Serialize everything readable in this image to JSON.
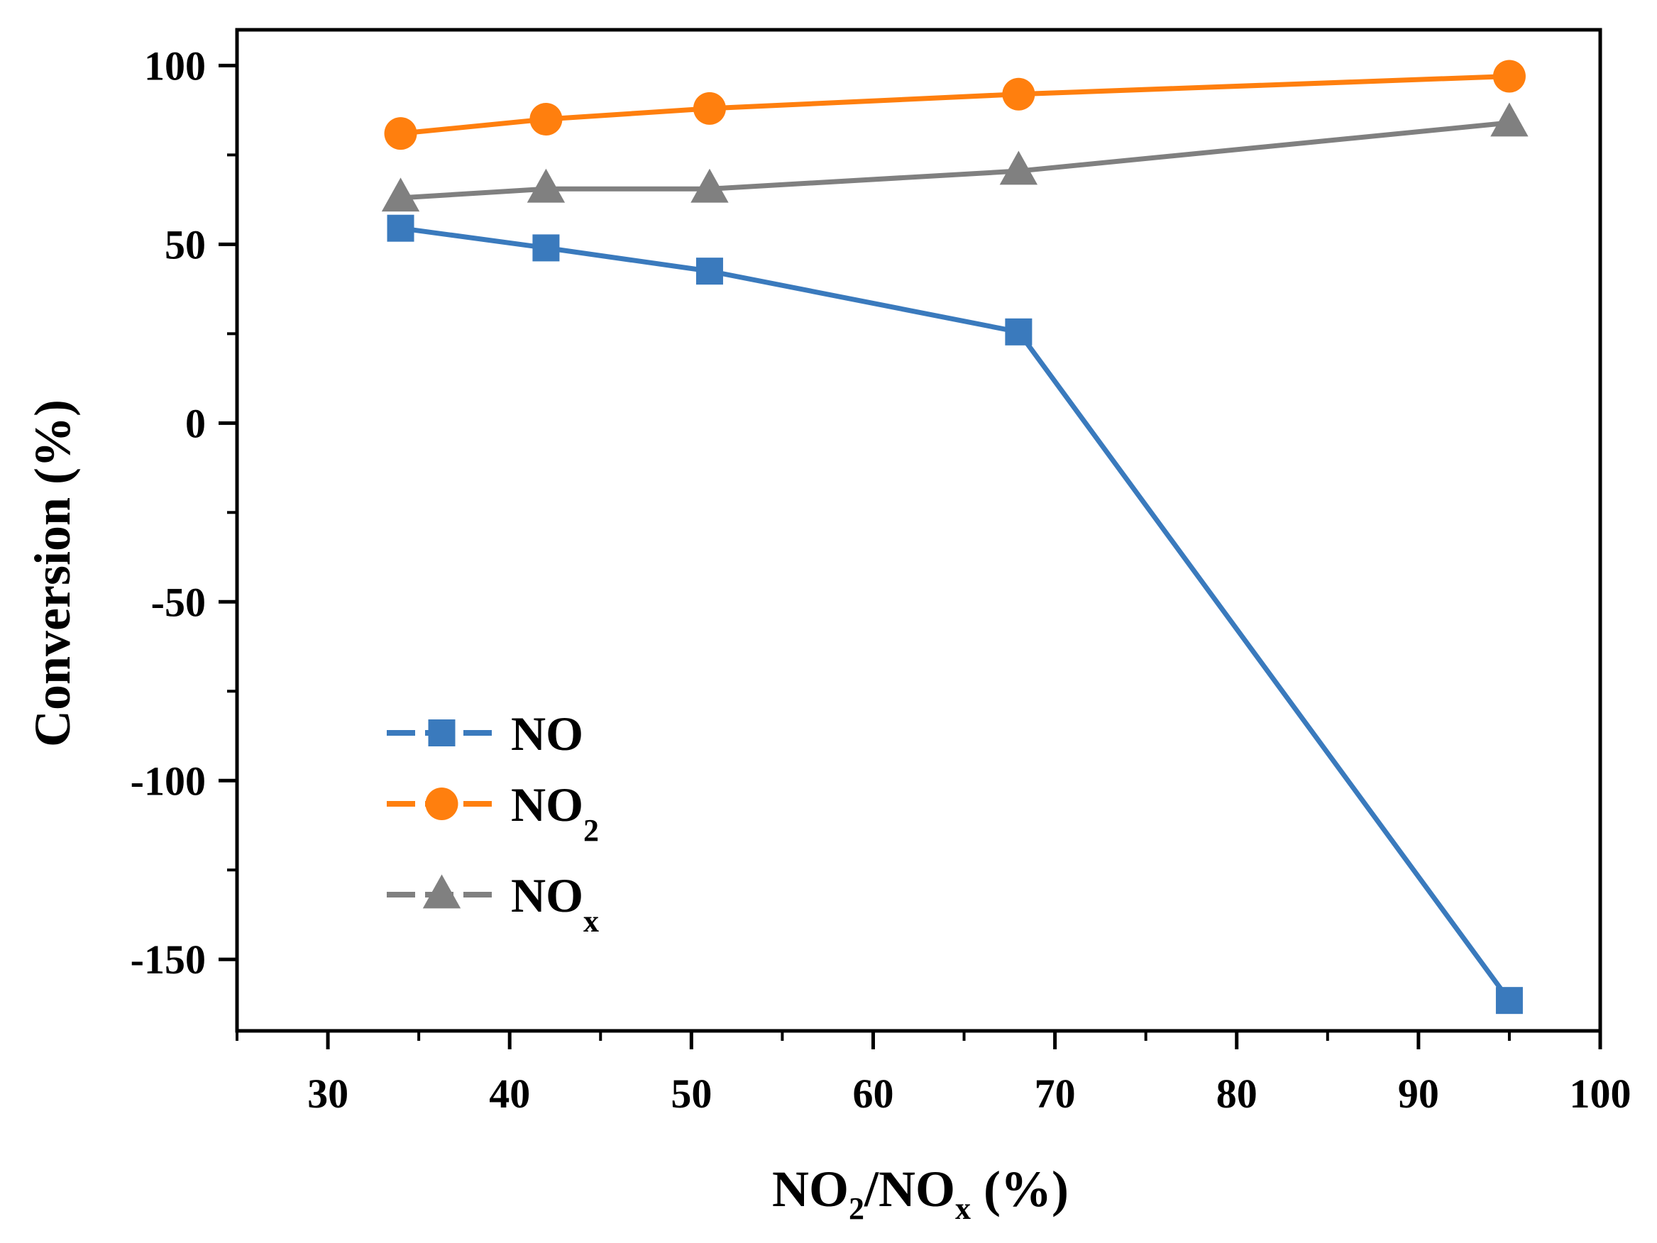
{
  "chart_data": {
    "type": "line",
    "title": "",
    "xlabel": {
      "main": "NO",
      "sub1": "2",
      "mid": "/NO",
      "sub2": "x",
      "tail": " (%)"
    },
    "ylabel": "Conversion (%)",
    "xlim": [
      25,
      100
    ],
    "ylim": [
      -170,
      110
    ],
    "xticks": [
      30,
      40,
      50,
      60,
      70,
      80,
      90,
      100
    ],
    "yticks": [
      -150,
      -100,
      -50,
      0,
      50,
      100
    ],
    "x": [
      34,
      42,
      51,
      68,
      95
    ],
    "series": [
      {
        "name": "NO",
        "sub": "",
        "marker": "square",
        "color": "#3A7ABD",
        "values": [
          54.5,
          49,
          42.5,
          25.5,
          -161.5
        ]
      },
      {
        "name": "NO",
        "sub": "2",
        "marker": "circle",
        "color": "#FF7F0E",
        "values": [
          81,
          85,
          88,
          92,
          97
        ]
      },
      {
        "name": "NO",
        "sub": "x",
        "marker": "triangle",
        "color": "#808080",
        "values": [
          63,
          65.5,
          65.5,
          70.5,
          84
        ]
      }
    ],
    "legend_position": "lower-left",
    "grid": false
  }
}
